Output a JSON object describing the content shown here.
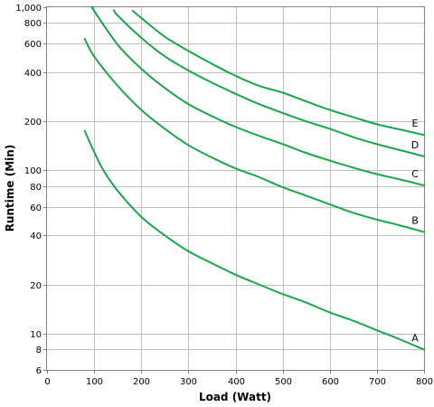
{
  "chart_data": {
    "type": "line",
    "xlabel": "Load (Watt)",
    "ylabel": "Runtime (Min)",
    "xlim": [
      0,
      800
    ],
    "ylim": [
      6,
      1000
    ],
    "yscale": "log",
    "grid": true,
    "line_color": "#1aa64a",
    "x_ticks": [
      {
        "value": 0,
        "label": "0"
      },
      {
        "value": 100,
        "label": "100"
      },
      {
        "value": 200,
        "label": "200"
      },
      {
        "value": 300,
        "label": "300"
      },
      {
        "value": 400,
        "label": "400"
      },
      {
        "value": 500,
        "label": "500"
      },
      {
        "value": 600,
        "label": "600"
      },
      {
        "value": 700,
        "label": "700"
      },
      {
        "value": 800,
        "label": "800"
      }
    ],
    "y_ticks": [
      {
        "value": 6,
        "label": "6"
      },
      {
        "value": 8,
        "label": "8"
      },
      {
        "value": 10,
        "label": "10"
      },
      {
        "value": 20,
        "label": "20"
      },
      {
        "value": 40,
        "label": "40"
      },
      {
        "value": 60,
        "label": "60"
      },
      {
        "value": 80,
        "label": "80"
      },
      {
        "value": 100,
        "label": "100"
      },
      {
        "value": 200,
        "label": "200"
      },
      {
        "value": 400,
        "label": "400"
      },
      {
        "value": 600,
        "label": "600"
      },
      {
        "value": 800,
        "label": "800"
      },
      {
        "value": 1000,
        "label": "1,000"
      }
    ],
    "series": [
      {
        "name": "A",
        "points": [
          [
            80,
            175
          ],
          [
            100,
            130
          ],
          [
            120,
            100
          ],
          [
            150,
            75
          ],
          [
            200,
            52
          ],
          [
            250,
            40
          ],
          [
            300,
            32
          ],
          [
            350,
            27
          ],
          [
            400,
            23
          ],
          [
            450,
            20
          ],
          [
            500,
            17.5
          ],
          [
            550,
            15.5
          ],
          [
            600,
            13.5
          ],
          [
            650,
            12
          ],
          [
            700,
            10.5
          ],
          [
            750,
            9.2
          ],
          [
            800,
            8
          ]
        ]
      },
      {
        "name": "B",
        "points": [
          [
            80,
            640
          ],
          [
            100,
            500
          ],
          [
            150,
            330
          ],
          [
            200,
            235
          ],
          [
            250,
            180
          ],
          [
            300,
            143
          ],
          [
            350,
            120
          ],
          [
            400,
            103
          ],
          [
            450,
            91
          ],
          [
            500,
            79
          ],
          [
            550,
            70
          ],
          [
            600,
            62
          ],
          [
            650,
            55
          ],
          [
            700,
            50
          ],
          [
            750,
            46
          ],
          [
            800,
            42
          ]
        ]
      },
      {
        "name": "C",
        "points": [
          [
            97,
            1000
          ],
          [
            100,
            950
          ],
          [
            150,
            590
          ],
          [
            200,
            420
          ],
          [
            250,
            320
          ],
          [
            300,
            255
          ],
          [
            350,
            215
          ],
          [
            400,
            185
          ],
          [
            450,
            163
          ],
          [
            500,
            145
          ],
          [
            550,
            128
          ],
          [
            600,
            115
          ],
          [
            650,
            104
          ],
          [
            700,
            95
          ],
          [
            750,
            88
          ],
          [
            800,
            81
          ]
        ]
      },
      {
        "name": "D",
        "points": [
          [
            142,
            960
          ],
          [
            150,
            890
          ],
          [
            200,
            650
          ],
          [
            250,
            500
          ],
          [
            300,
            410
          ],
          [
            350,
            345
          ],
          [
            400,
            295
          ],
          [
            450,
            255
          ],
          [
            500,
            225
          ],
          [
            550,
            200
          ],
          [
            600,
            180
          ],
          [
            650,
            160
          ],
          [
            700,
            145
          ],
          [
            750,
            133
          ],
          [
            800,
            122
          ]
        ]
      },
      {
        "name": "E",
        "points": [
          [
            182,
            950
          ],
          [
            200,
            860
          ],
          [
            250,
            660
          ],
          [
            300,
            540
          ],
          [
            350,
            450
          ],
          [
            400,
            380
          ],
          [
            450,
            330
          ],
          [
            500,
            300
          ],
          [
            550,
            265
          ],
          [
            600,
            235
          ],
          [
            650,
            212
          ],
          [
            700,
            192
          ],
          [
            750,
            178
          ],
          [
            800,
            165
          ]
        ]
      }
    ]
  }
}
